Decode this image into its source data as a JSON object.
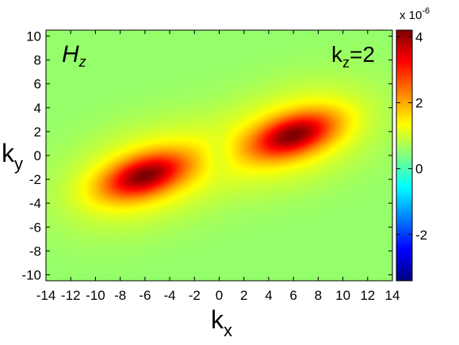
{
  "chart_data": {
    "type": "heatmap",
    "title": "",
    "quantity_label": "H",
    "quantity_subscript": "z",
    "annotation": {
      "prefix": "k",
      "subscript": "z",
      "suffix": "=2"
    },
    "xlabel": {
      "base": "k",
      "subscript": "x"
    },
    "ylabel": {
      "base": "k",
      "subscript": "y"
    },
    "xlim": [
      -14,
      14
    ],
    "ylim": [
      -10.5,
      10.5
    ],
    "x_ticks": [
      -14,
      -12,
      -10,
      -8,
      -6,
      -4,
      -2,
      0,
      2,
      4,
      6,
      8,
      10,
      12,
      14
    ],
    "y_ticks": [
      -10,
      -8,
      -6,
      -4,
      -2,
      0,
      2,
      4,
      6,
      8,
      10
    ],
    "colormap": "jet",
    "colorbar": {
      "range": [
        -3.4e-06,
        4.2e-06
      ],
      "ticks": [
        -2,
        0,
        2,
        4
      ],
      "exponent_label": "x 10",
      "exponent": "-6"
    },
    "background_value": 5.5e-07,
    "features": [
      {
        "kind": "peak",
        "center": [
          -6,
          -1.7
        ],
        "amplitude": 4.2e-06,
        "orientation_deg": 18
      },
      {
        "kind": "peak",
        "center": [
          6,
          1.7
        ],
        "amplitude": 4.2e-06,
        "orientation_deg": 18
      },
      {
        "kind": "dip",
        "center": [
          0,
          0
        ],
        "min_value": 0.0
      }
    ]
  }
}
